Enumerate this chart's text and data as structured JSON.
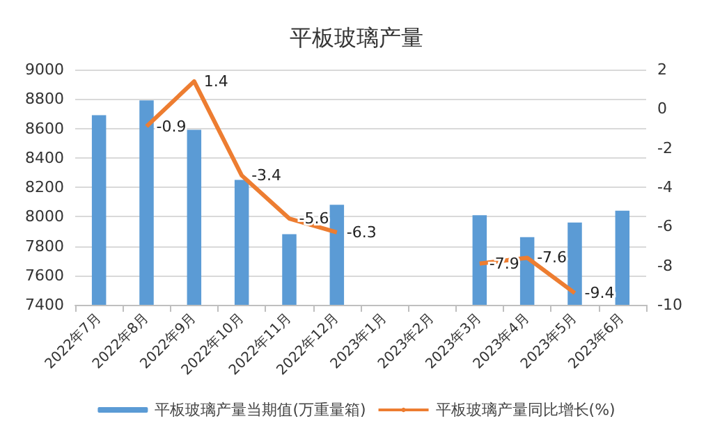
{
  "chart_data": {
    "type": "bar",
    "title": "平板玻璃产量",
    "categories": [
      "2022年7月",
      "2022年8月",
      "2022年9月",
      "2022年10月",
      "2022年11月",
      "2022年12月",
      "2023年1月",
      "2023年2月",
      "2023年3月",
      "2023年4月",
      "2023年5月",
      "2023年6月"
    ],
    "series": [
      {
        "name": "平板玻璃产量当期值(万重量箱)",
        "color": "#5b9bd5",
        "values": [
          8690,
          8790,
          8590,
          8250,
          7880,
          8080,
          null,
          null,
          8010,
          7860,
          7960,
          8040
        ]
      },
      {
        "name": "平板玻璃产量同比增长(%)",
        "type": "line",
        "axis": "y2",
        "color": "#ed7d31",
        "values": [
          null,
          -0.9,
          1.4,
          -3.4,
          -5.6,
          -6.3,
          null,
          null,
          -7.9,
          -7.6,
          -9.4,
          null
        ],
        "value_labels": [
          null,
          "-0.9",
          "1.4",
          "-3.4",
          "-5.6",
          "-6.3",
          null,
          null,
          "-7.9",
          "-7.6",
          "-9.4",
          null
        ]
      }
    ],
    "ylim": [
      7400,
      9000
    ],
    "yticks": [
      7400,
      7600,
      7800,
      8000,
      8200,
      8400,
      8600,
      8800,
      9000
    ],
    "y2lim": [
      -10,
      2
    ],
    "y2ticks": [
      -10,
      -8,
      -6,
      -4,
      -2,
      0,
      2
    ],
    "grid": "y",
    "legend": "bottom",
    "marker": "none"
  }
}
